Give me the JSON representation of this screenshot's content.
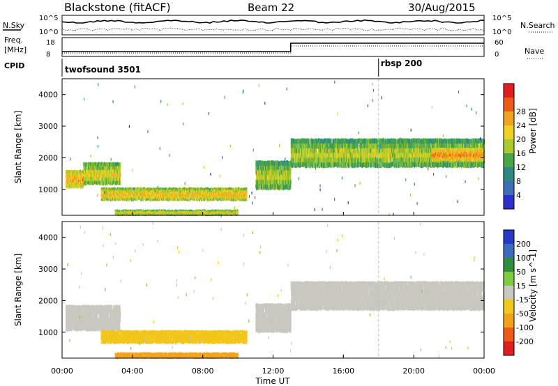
{
  "header": {
    "title": "Blackstone (fitACF)",
    "beam": "Beam 22",
    "date": "30/Aug/2015"
  },
  "top_panels": {
    "nsky_label": "N.Sky",
    "nsearch_label": "N.Search",
    "nsky_ticks": [
      "10^5",
      "10^0"
    ],
    "freq_label": "Freq.",
    "freq_unit": "[MHz]",
    "freq_ticks": [
      "18",
      "8"
    ],
    "nave_label": "Nave",
    "nave_ticks": [
      "60",
      "0"
    ],
    "cpid_label": "CPID",
    "cpid_segments": [
      {
        "start_h": 0,
        "label": "twofsound 3501"
      },
      {
        "start_h": 18,
        "label": "rbsp 200"
      }
    ]
  },
  "chart_data": [
    {
      "type": "heatmap",
      "name": "power",
      "ylabel": "Slant Range [km]",
      "colorbar_label": "Power [dB]",
      "colorbar_ticks": [
        4,
        8,
        12,
        16,
        20,
        24,
        28
      ],
      "colors": [
        "#2f2fd0",
        "#3b6fb8",
        "#2e8a7f",
        "#45a845",
        "#aacb2f",
        "#f0d020",
        "#f5a020",
        "#ee5a16",
        "#e11d1d"
      ],
      "ylim": [
        180,
        4500
      ],
      "yticks": [
        1000,
        2000,
        3000,
        4000
      ],
      "xlim": [
        0,
        24
      ],
      "regions": [
        {
          "t0": 0.2,
          "t1": 1.2,
          "r0": 1050,
          "r1": 1600,
          "power": 20
        },
        {
          "t0": 1.2,
          "t1": 3.3,
          "r0": 1150,
          "r1": 1850,
          "power": 16
        },
        {
          "t0": 2.2,
          "t1": 10.5,
          "r0": 650,
          "r1": 1050,
          "power": 18
        },
        {
          "t0": 3.0,
          "t1": 10.0,
          "r0": 180,
          "r1": 350,
          "power": 16
        },
        {
          "t0": 11.0,
          "t1": 13.0,
          "r0": 1000,
          "r1": 1900,
          "power": 14
        },
        {
          "t0": 13.0,
          "t1": 24.0,
          "r0": 1700,
          "r1": 2600,
          "power": 14
        },
        {
          "t0": 21.0,
          "t1": 24.0,
          "r0": 1900,
          "r1": 2300,
          "power": 22
        }
      ]
    },
    {
      "type": "heatmap",
      "name": "velocity",
      "ylabel": "Slant Range [km]",
      "colorbar_label": "Velocity [m s^-1]",
      "colorbar_ticks": [
        200,
        100,
        50,
        15,
        -15,
        -50,
        -100,
        -200
      ],
      "colors": [
        "#2838c8",
        "#3a6cbf",
        "#2f8f3c",
        "#7ccf3a",
        "#c8c8c0",
        "#f2c61a",
        "#f4a21c",
        "#ee5a16",
        "#e11d1d"
      ],
      "ylim": [
        180,
        4500
      ],
      "yticks": [
        1000,
        2000,
        3000,
        4000
      ],
      "xlim": [
        0,
        24
      ],
      "regions": [
        {
          "t0": 0.2,
          "t1": 3.3,
          "r0": 1050,
          "r1": 1850,
          "velocity": 0
        },
        {
          "t0": 2.2,
          "t1": 10.5,
          "r0": 650,
          "r1": 1050,
          "velocity": -20
        },
        {
          "t0": 3.0,
          "t1": 10.0,
          "r0": 180,
          "r1": 350,
          "velocity": -40
        },
        {
          "t0": 11.0,
          "t1": 13.0,
          "r0": 1000,
          "r1": 1900,
          "velocity": 0
        },
        {
          "t0": 13.0,
          "t1": 24.0,
          "r0": 1700,
          "r1": 2600,
          "velocity": 0
        }
      ]
    }
  ],
  "xaxis": {
    "ticks": [
      "00:00",
      "04:00",
      "08:00",
      "12:00",
      "16:00",
      "20:00",
      "00:00"
    ],
    "tick_hours": [
      0,
      4,
      8,
      12,
      16,
      20,
      24
    ],
    "label": "Time UT"
  },
  "rbsp_line_h": 18
}
